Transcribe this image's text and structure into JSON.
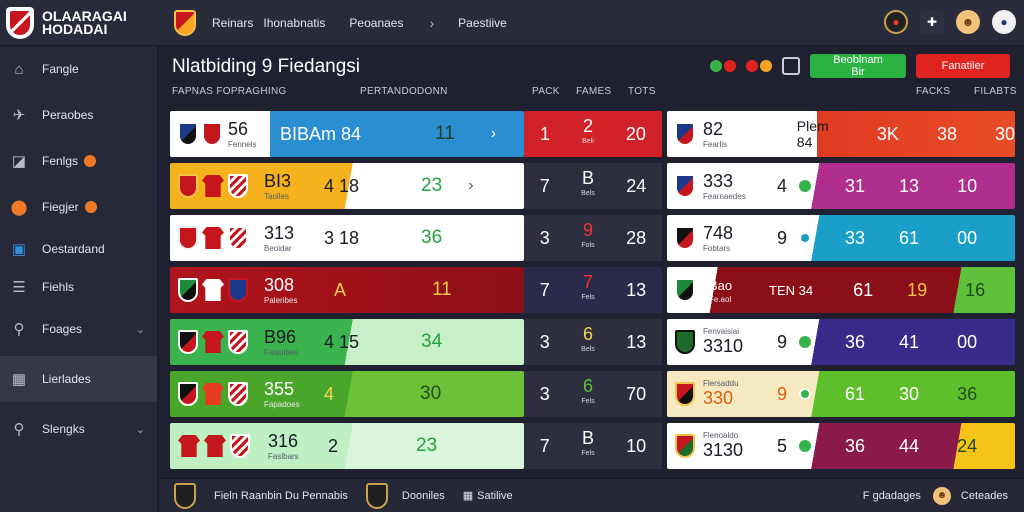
{
  "brand": {
    "line1": "OLAARAGAI",
    "line2": "HODADAI"
  },
  "nav": {
    "items": [
      "Reinars",
      "Ihonabnatis",
      "Peoanaes"
    ],
    "current": "Paestiive"
  },
  "sidebar": {
    "items": [
      {
        "label": "Fangle",
        "icon": "home-icon"
      },
      {
        "label": "Peraobes",
        "icon": "pin-icon"
      },
      {
        "label": "Fenlgs",
        "icon": "tag-icon",
        "badge": true
      },
      {
        "label": "Fiegjer",
        "icon": "shield-icon",
        "badge": true
      },
      {
        "label": "Oestardand",
        "icon": "chart-icon"
      },
      {
        "label": "Fiehls",
        "icon": "list-icon"
      },
      {
        "label": "Foages",
        "icon": "search-icon",
        "chevron": true
      },
      {
        "label": "Lierlades",
        "icon": "building-icon"
      },
      {
        "label": "Slengks",
        "icon": "search-icon",
        "chevron": true
      }
    ]
  },
  "main": {
    "title": "Nlatbiding 9 Fiedangsi",
    "btn_green": "Beoblnam Bir",
    "btn_red": "Fanatiler",
    "head_left": "FAPNAS FOPRAGHING",
    "head_mid": "PERTANDODONN",
    "head_c1": "PACK",
    "head_c2": "FAMES",
    "head_c3": "TOTS",
    "head_r1": "FACKS",
    "head_r2": "FILABTS"
  },
  "rows": [
    {
      "code": "BIBAm 84",
      "code2": "56",
      "sub": "Fennels",
      "val": "11",
      "a": "1",
      "b": "2",
      "c": "20",
      "sub_b": "Beli",
      "r_code": "Plem 84",
      "r_code2": "82",
      "r_sub": "Fearlis",
      "r1": "3K",
      "r2": "38",
      "r3": "30"
    },
    {
      "code": "BI3",
      "code2": "4 18",
      "sub": "Taolles",
      "val": "23",
      "a": "7",
      "b": "B",
      "c": "24",
      "sub_b": "Bels",
      "r_code": "333",
      "r_code2": "4",
      "r_sub": "Fearnaedes",
      "r1": "31",
      "r2": "13",
      "r3": "10"
    },
    {
      "code": "313",
      "code2": "3 18",
      "sub": "Beoidar",
      "val": "36",
      "a": "3",
      "b": "9",
      "c": "28",
      "sub_b": "Fols",
      "r_code": "748",
      "r_code2": "9",
      "r_sub": "Fobtars",
      "r1": "33",
      "r2": "61",
      "r3": "00"
    },
    {
      "code": "308",
      "code2": "A",
      "sub": "Paleribes",
      "val": "11",
      "a": "7",
      "b": "7",
      "c": "13",
      "sub_b": "Fels",
      "r_code": "Bao",
      "r_code2": "TEN 34",
      "r_sub": "Fe.aol",
      "r1": "61",
      "r2": "19",
      "r3": "16"
    },
    {
      "code": "B96",
      "code2": "4 15",
      "sub": "Falsuibes",
      "val": "34",
      "a": "3",
      "b": "6",
      "c": "13",
      "sub_b": "Bels",
      "r_code": "3310",
      "r_code2": "9",
      "r_sub": "Fenvaisiai",
      "r1": "36",
      "r2": "41",
      "r3": "00"
    },
    {
      "code": "355",
      "code2": "4",
      "sub": "Fapadoes",
      "val": "30",
      "a": "3",
      "b": "6",
      "c": "70",
      "sub_b": "Fels",
      "r_code": "330",
      "r_code2": "9",
      "r_sub": "Flersaddu",
      "r1": "61",
      "r2": "30",
      "r3": "36"
    },
    {
      "code": "316",
      "code2": "2",
      "sub": "Faslbars",
      "val": "23",
      "a": "7",
      "b": "B",
      "c": "10",
      "sub_b": "Fels",
      "r_code": "3130",
      "r_code2": "5",
      "r_sub": "Flenoaldo",
      "r1": "36",
      "r2": "44",
      "r3": "24"
    }
  ],
  "footer": {
    "left": "Fieln Raanbin Du Pennabis",
    "mid1": "Dooniles",
    "mid2": "Satilive",
    "right1": "F gdadages",
    "right2": "Ceteades"
  }
}
